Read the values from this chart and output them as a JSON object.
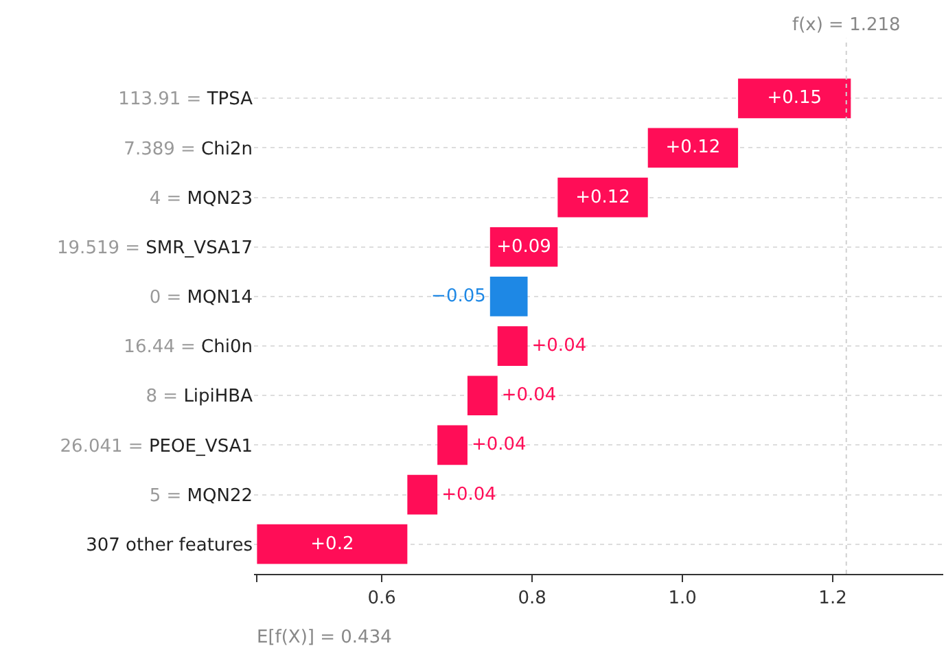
{
  "chart_data": {
    "type": "bar",
    "orientation": "horizontal",
    "categories": [
      "113.91 = TPSA",
      "7.389 = Chi2n",
      "4 = MQN23",
      "19.519 = SMR_VSA17",
      "0 = MQN14",
      "16.44 = Chi0n",
      "8 = LipiHBA",
      "26.041 = PEOE_VSA1",
      "5 = MQN22",
      "307 other features"
    ],
    "values": [
      0.15,
      0.12,
      0.12,
      0.09,
      -0.05,
      0.04,
      0.04,
      0.04,
      0.04,
      0.2
    ],
    "base": [
      1.074,
      0.954,
      0.834,
      0.744,
      0.794,
      0.754,
      0.714,
      0.674,
      0.634,
      0.434
    ],
    "colors": [
      "#ff0d57",
      "#ff0d57",
      "#ff0d57",
      "#ff0d57",
      "#1e88e5",
      "#ff0d57",
      "#ff0d57",
      "#ff0d57",
      "#ff0d57",
      "#ff0d57"
    ],
    "value_labels": [
      "+0.15",
      "+0.12",
      "+0.12",
      "+0.09",
      "−0.05",
      "+0.04",
      "+0.04",
      "+0.04",
      "+0.04",
      "+0.2"
    ],
    "xlim": [
      0.43,
      1.347
    ],
    "xticks": [
      {
        "value": 0.434,
        "label": null
      },
      0.6,
      0.8,
      {
        "value": 1.0,
        "label": "1.0"
      },
      1.2
    ],
    "grid": "y",
    "ref_lines": [
      {
        "axis": "x",
        "value": 1.218,
        "label": "f(x) = 1.218",
        "line_style": "dotted",
        "color": "#d0d0d0"
      }
    ],
    "annotations": [
      "E[f(X)] = 0.434"
    ],
    "legend": false
  }
}
